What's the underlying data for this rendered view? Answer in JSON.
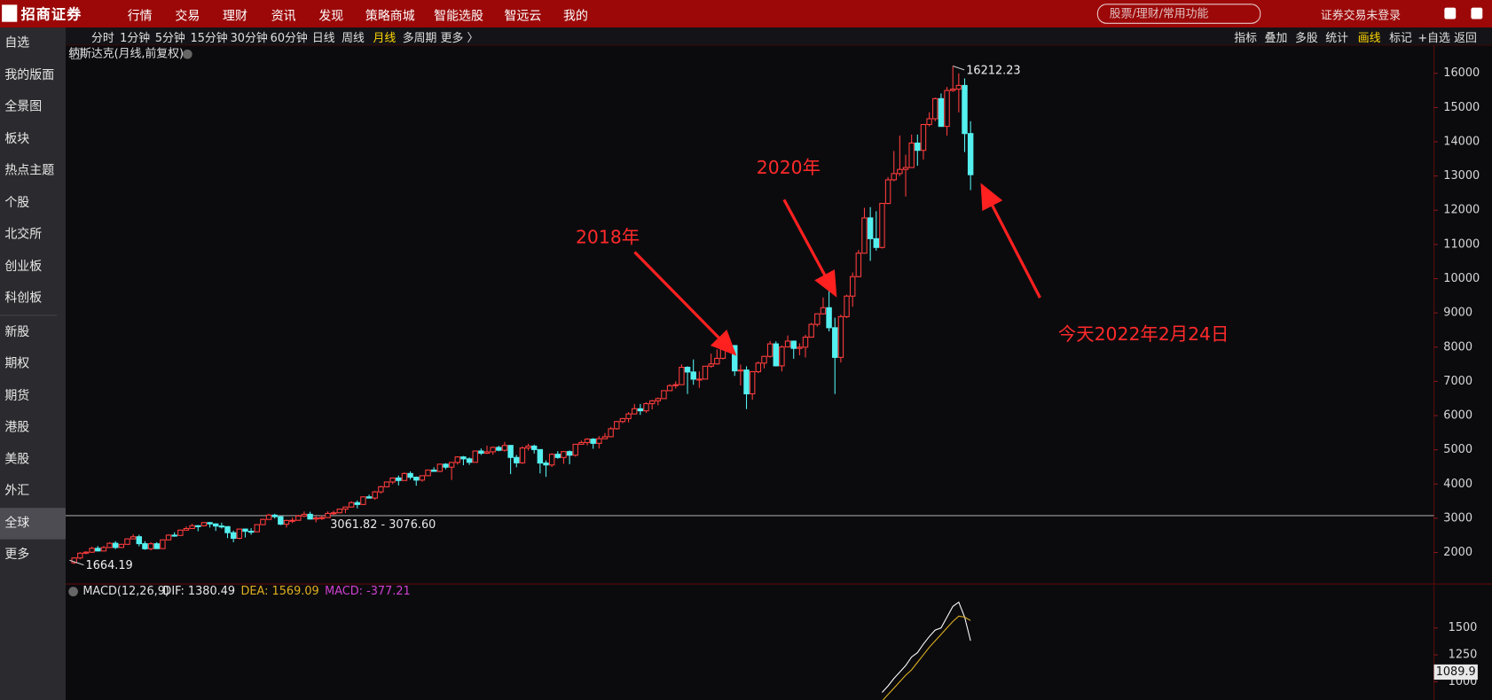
{
  "top_nav": {
    "logo": "招商证券",
    "items": [
      "行情",
      "交易",
      "理财",
      "资讯",
      "发现",
      "策略商城",
      "智能选股",
      "智远云",
      "我的"
    ],
    "search_placeholder": "股票/理财/常用功能",
    "login_status": "证券交易未登录"
  },
  "sidebar": {
    "items": [
      "自选",
      "我的版面",
      "全景图",
      "板块",
      "热点主题",
      "个股",
      "北交所",
      "创业板",
      "科创板",
      "新股",
      "期权",
      "期货",
      "港股",
      "美股",
      "外汇",
      "全球",
      "更多"
    ],
    "active": 15
  },
  "toolbar": {
    "periods": [
      "分时",
      "1分钟",
      "5分钟",
      "15分钟",
      "30分钟",
      "60分钟",
      "日线",
      "周线",
      "月线",
      "多周期",
      "更多 〉"
    ],
    "active_period": 8,
    "tools": [
      "指标",
      "叠加",
      "多股",
      "统计",
      "画线",
      "标记",
      "+自选",
      "返回"
    ],
    "active_tool": 4
  },
  "chart_data": [
    {
      "type": "candlestick",
      "title": "纳斯达克(月线,前复权)",
      "up_color": "#ff3c3c",
      "down_color": "#54f0f0",
      "ylim": [
        1080,
        16530
      ],
      "yticks": [
        2000,
        3000,
        4000,
        5000,
        6000,
        7000,
        8000,
        9000,
        10000,
        11000,
        12000,
        13000,
        14000,
        15000,
        16000
      ],
      "range_line": {
        "low": 3061.82,
        "high": 3076.6,
        "label": "3061.82 - 3076.60"
      },
      "annotations": [
        "2018年",
        "2020年",
        "今天2022年2月24日"
      ],
      "candles": [
        [
          1700,
          1860,
          1664.19,
          1840
        ],
        [
          1840,
          2010,
          1800,
          1979
        ],
        [
          1979,
          2040,
          1950,
          2009
        ],
        [
          2009,
          2170,
          1990,
          2122
        ],
        [
          2122,
          2190,
          2030,
          2045
        ],
        [
          2045,
          2190,
          2030,
          2145
        ],
        [
          2145,
          2300,
          2130,
          2269
        ],
        [
          2269,
          2330,
          2100,
          2147
        ],
        [
          2147,
          2250,
          2130,
          2238
        ],
        [
          2238,
          2410,
          2230,
          2398
        ],
        [
          2398,
          2535,
          2390,
          2461
        ],
        [
          2461,
          2520,
          2180,
          2257
        ],
        [
          2257,
          2330,
          2080,
          2109
        ],
        [
          2109,
          2300,
          2060,
          2255
        ],
        [
          2255,
          2300,
          2100,
          2114
        ],
        [
          2114,
          2380,
          2110,
          2368
        ],
        [
          2368,
          2530,
          2360,
          2507
        ],
        [
          2507,
          2590,
          2460,
          2498
        ],
        [
          2498,
          2670,
          2490,
          2653
        ],
        [
          2653,
          2760,
          2640,
          2700
        ],
        [
          2700,
          2840,
          2690,
          2782
        ],
        [
          2782,
          2800,
          2620,
          2781
        ],
        [
          2781,
          2890,
          2760,
          2874
        ],
        [
          2874,
          2890,
          2730,
          2835
        ],
        [
          2835,
          2850,
          2630,
          2774
        ],
        [
          2774,
          2870,
          2700,
          2756
        ],
        [
          2756,
          2760,
          2420,
          2579
        ],
        [
          2579,
          2640,
          2300,
          2415
        ],
        [
          2415,
          2700,
          2390,
          2684
        ],
        [
          2684,
          2700,
          2440,
          2620
        ],
        [
          2620,
          2710,
          2520,
          2605
        ],
        [
          2605,
          2820,
          2600,
          2814
        ],
        [
          2814,
          2990,
          2800,
          2966
        ],
        [
          2966,
          3130,
          2960,
          3092
        ],
        [
          3092,
          3130,
          2990,
          3046
        ],
        [
          3046,
          3060,
          2800,
          2827
        ],
        [
          2827,
          2960,
          2730,
          2935
        ],
        [
          2935,
          3020,
          2860,
          2940
        ],
        [
          2940,
          3100,
          2930,
          3067
        ],
        [
          3067,
          3200,
          3030,
          3116
        ],
        [
          3116,
          3190,
          2970,
          2977
        ],
        [
          2977,
          3060,
          2880,
          3010
        ],
        [
          3010,
          3080,
          2950,
          3020
        ],
        [
          3020,
          3200,
          3010,
          3142
        ],
        [
          3142,
          3220,
          3100,
          3160
        ],
        [
          3160,
          3280,
          3150,
          3268
        ],
        [
          3268,
          3340,
          3150,
          3329
        ],
        [
          3329,
          3500,
          3320,
          3456
        ],
        [
          3456,
          3520,
          3290,
          3403
        ],
        [
          3403,
          3630,
          3390,
          3626
        ],
        [
          3626,
          3690,
          3580,
          3590
        ],
        [
          3590,
          3800,
          3540,
          3771
        ],
        [
          3771,
          3950,
          3720,
          3920
        ],
        [
          3920,
          4070,
          3900,
          4060
        ],
        [
          4060,
          4180,
          4000,
          4177
        ],
        [
          4177,
          4250,
          3960,
          4104
        ],
        [
          4104,
          4340,
          4100,
          4308
        ],
        [
          4308,
          4370,
          4130,
          4199
        ],
        [
          4199,
          4220,
          3950,
          4115
        ],
        [
          4115,
          4250,
          4070,
          4243
        ],
        [
          4243,
          4410,
          4230,
          4408
        ],
        [
          4408,
          4490,
          4360,
          4370
        ],
        [
          4370,
          4580,
          4350,
          4580
        ],
        [
          4580,
          4610,
          4430,
          4493
        ],
        [
          4493,
          4640,
          4120,
          4631
        ],
        [
          4631,
          4810,
          4570,
          4792
        ],
        [
          4792,
          4820,
          4550,
          4736
        ],
        [
          4736,
          4780,
          4560,
          4635
        ],
        [
          4635,
          4970,
          4630,
          4964
        ],
        [
          4964,
          5040,
          4850,
          4901
        ],
        [
          4901,
          5120,
          4880,
          4941
        ],
        [
          4941,
          5100,
          4860,
          5070
        ],
        [
          5070,
          5120,
          4960,
          4987
        ],
        [
          4987,
          5230,
          4950,
          5128
        ],
        [
          5128,
          5130,
          4290,
          4777
        ],
        [
          4777,
          4850,
          4490,
          4620
        ],
        [
          4620,
          5100,
          4590,
          5054
        ],
        [
          5054,
          5180,
          4980,
          5109
        ],
        [
          5109,
          5150,
          4890,
          5007
        ],
        [
          5007,
          5010,
          4310,
          4614
        ],
        [
          4614,
          4690,
          4210,
          4558
        ],
        [
          4558,
          4900,
          4500,
          4870
        ],
        [
          4870,
          4960,
          4740,
          4775
        ],
        [
          4775,
          4960,
          4590,
          4948
        ],
        [
          4948,
          4980,
          4580,
          4843
        ],
        [
          4843,
          5170,
          4800,
          5162
        ],
        [
          5162,
          5270,
          5150,
          5213
        ],
        [
          5213,
          5340,
          5130,
          5312
        ],
        [
          5312,
          5340,
          5030,
          5189
        ],
        [
          5189,
          5400,
          5040,
          5324
        ],
        [
          5324,
          5490,
          5310,
          5383
        ],
        [
          5383,
          5670,
          5370,
          5615
        ],
        [
          5615,
          5840,
          5590,
          5825
        ],
        [
          5825,
          5930,
          5780,
          5912
        ],
        [
          5912,
          6100,
          5800,
          6048
        ],
        [
          6048,
          6340,
          6040,
          6199
        ],
        [
          6199,
          6340,
          6020,
          6140
        ],
        [
          6140,
          6390,
          6080,
          6348
        ],
        [
          6348,
          6460,
          6180,
          6429
        ],
        [
          6429,
          6530,
          6300,
          6496
        ],
        [
          6496,
          6740,
          6490,
          6728
        ],
        [
          6728,
          6920,
          6720,
          6874
        ],
        [
          6874,
          7000,
          6790,
          6903
        ],
        [
          6903,
          7500,
          6900,
          7411
        ],
        [
          7411,
          7440,
          6630,
          7273
        ],
        [
          7273,
          7640,
          6900,
          7063
        ],
        [
          7063,
          7290,
          6810,
          7066
        ],
        [
          7066,
          7450,
          7060,
          7442
        ],
        [
          7442,
          7810,
          7400,
          7510
        ],
        [
          7510,
          7930,
          7490,
          7672
        ],
        [
          7672,
          8130,
          7640,
          8110
        ],
        [
          8110,
          8130,
          7920,
          8046
        ],
        [
          8046,
          8050,
          7160,
          7306
        ],
        [
          7306,
          7490,
          6880,
          7331
        ],
        [
          7331,
          7440,
          6190,
          6635
        ],
        [
          6635,
          7300,
          6460,
          7282
        ],
        [
          7282,
          7580,
          7240,
          7533
        ],
        [
          7533,
          7750,
          7380,
          7729
        ],
        [
          7729,
          8180,
          7690,
          8095
        ],
        [
          8095,
          8170,
          7440,
          7453
        ],
        [
          7453,
          8050,
          7290,
          8006
        ],
        [
          8006,
          8340,
          8000,
          8175
        ],
        [
          8175,
          8190,
          7660,
          7963
        ],
        [
          7963,
          8110,
          7760,
          7999
        ],
        [
          7999,
          8360,
          7700,
          8292
        ],
        [
          8292,
          8710,
          8290,
          8665
        ],
        [
          8665,
          8980,
          8600,
          8973
        ],
        [
          8973,
          9450,
          8950,
          9151
        ],
        [
          9151,
          9840,
          8460,
          8567
        ],
        [
          8567,
          8860,
          6630,
          7700
        ],
        [
          7700,
          8950,
          7550,
          8890
        ],
        [
          8890,
          9530,
          8850,
          9490
        ],
        [
          9490,
          10180,
          9180,
          10059
        ],
        [
          10059,
          10840,
          10040,
          10745
        ],
        [
          10745,
          12070,
          10730,
          11775
        ],
        [
          11775,
          12090,
          10520,
          11168
        ],
        [
          11168,
          11970,
          10820,
          10912
        ],
        [
          10912,
          12200,
          10880,
          12199
        ],
        [
          12199,
          12970,
          12180,
          12888
        ],
        [
          12888,
          13730,
          12850,
          13071
        ],
        [
          13071,
          14180,
          13000,
          13192
        ],
        [
          13192,
          13620,
          12400,
          13247
        ],
        [
          13247,
          14210,
          13240,
          13962
        ],
        [
          13962,
          14210,
          13300,
          13749
        ],
        [
          13749,
          14520,
          13480,
          14504
        ],
        [
          14504,
          14860,
          14450,
          14673
        ],
        [
          14673,
          15290,
          14600,
          15259
        ],
        [
          15259,
          15410,
          14450,
          14449
        ],
        [
          14449,
          15600,
          14180,
          15498
        ],
        [
          15498,
          16212.23,
          15460,
          15538
        ],
        [
          15538,
          16000,
          14860,
          15645
        ],
        [
          15645,
          15850,
          13700,
          14240
        ],
        [
          14240,
          14600,
          12587,
          13038
        ]
      ]
    },
    {
      "type": "line",
      "indicator": "MACD(12,26,9)",
      "macd_label": "MACD: -377.21",
      "macd_color": "#d040d0",
      "ylim": [
        830,
        1900
      ],
      "yticks": [
        1000,
        1250,
        1500
      ],
      "cursor_value": 1089.9,
      "series": [
        {
          "name": "DIF: 1380.49",
          "color": "#ffffff",
          "values": [
            900,
            960,
            1030,
            1090,
            1150,
            1230,
            1270,
            1350,
            1420,
            1480,
            1500,
            1600,
            1700,
            1740,
            1600,
            1380.49
          ]
        },
        {
          "name": "DEA: 1569.09",
          "color": "#e0b020",
          "values": [
            820,
            880,
            940,
            1000,
            1060,
            1110,
            1180,
            1250,
            1320,
            1380,
            1440,
            1500,
            1560,
            1610,
            1600,
            1569.09
          ]
        }
      ]
    }
  ]
}
